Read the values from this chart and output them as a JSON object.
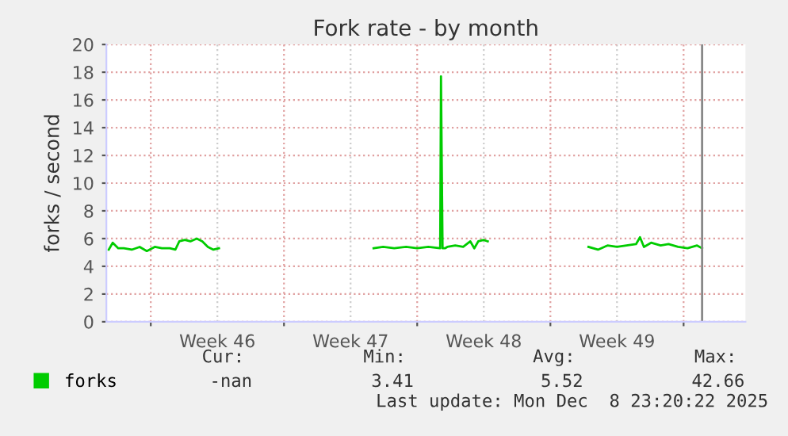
{
  "chart_data": {
    "type": "line",
    "title": "Fork rate - by month",
    "ylabel": "forks / second",
    "x": [
      "2025-11-07T19:00",
      "2025-11-08T00:00",
      "2025-11-08T07:00",
      "2025-11-08T14:00",
      "2025-11-09T00:00",
      "2025-11-09T10:00",
      "2025-11-09T19:00",
      "2025-11-10T05:00",
      "2025-11-10T14:00",
      "2025-11-11T00:00",
      "2025-11-11T07:00",
      "2025-11-11T12:00",
      "2025-11-11T19:00",
      "2025-11-12T02:00",
      "2025-11-12T10:00",
      "2025-11-12T17:00",
      "2025-11-13T00:00",
      "2025-11-13T07:00",
      "2025-11-13T14:00",
      "2025-11-14T00:00",
      "2025-11-21T17:00",
      "2025-11-22T05:00",
      "2025-11-22T19:00",
      "2025-11-23T10:00",
      "2025-11-24T00:00",
      "2025-11-24T14:00",
      "2025-11-25T05:00",
      "2025-11-25T06:00",
      "2025-11-25T08:00",
      "2025-11-25T11:00",
      "2025-11-25T14:00",
      "2025-11-26T00:00",
      "2025-11-26T10:00",
      "2025-11-26T19:00",
      "2025-11-27T00:00",
      "2025-11-27T05:00",
      "2025-11-27T12:00",
      "2025-11-27T17:00",
      "2025-11-30T00:00",
      "2025-12-03T00:00",
      "2025-12-03T12:00",
      "2025-12-04T00:00",
      "2025-12-04T12:00",
      "2025-12-05T00:00",
      "2025-12-05T12:00",
      "2025-12-05T17:00",
      "2025-12-05T22:00",
      "2025-12-06T07:00",
      "2025-12-06T19:00",
      "2025-12-07T05:00",
      "2025-12-07T17:00",
      "2025-12-08T05:00",
      "2025-12-08T17:00",
      "2025-12-08T23:20"
    ],
    "series": [
      {
        "name": "forks",
        "color": "#00cc00",
        "values": [
          5.2,
          5.7,
          5.3,
          5.3,
          5.2,
          5.4,
          5.1,
          5.4,
          5.3,
          5.3,
          5.2,
          5.8,
          5.9,
          5.8,
          6.0,
          5.8,
          5.4,
          5.2,
          5.3,
          null,
          5.3,
          5.4,
          5.3,
          5.4,
          5.3,
          5.4,
          5.3,
          17.7,
          5.3,
          5.3,
          5.4,
          5.5,
          5.4,
          5.8,
          5.3,
          5.8,
          5.9,
          5.8,
          null,
          5.4,
          5.2,
          5.5,
          5.4,
          5.5,
          5.6,
          6.1,
          5.4,
          5.7,
          5.5,
          5.6,
          5.4,
          5.3,
          5.5,
          5.3
        ]
      }
    ],
    "xlim": [
      "2025-11-07T16:00",
      "2025-12-11T06:00"
    ],
    "xticks": [
      {
        "value": "2025-11-10",
        "label": null
      },
      {
        "value": "2025-11-13T12:00",
        "label": "Week 46"
      },
      {
        "value": "2025-11-17",
        "label": null
      },
      {
        "value": "2025-11-20T12:00",
        "label": "Week 47"
      },
      {
        "value": "2025-11-24",
        "label": null
      },
      {
        "value": "2025-11-27T12:00",
        "label": "Week 48"
      },
      {
        "value": "2025-12-01",
        "label": null
      },
      {
        "value": "2025-12-04T12:00",
        "label": "Week 49"
      },
      {
        "value": "2025-12-08",
        "label": null
      }
    ],
    "ylim": [
      0,
      20
    ],
    "yticks": [
      0,
      2,
      4,
      6,
      8,
      10,
      12,
      14,
      16,
      18,
      20
    ],
    "ref_lines": [
      {
        "axis": "x",
        "value": "2025-12-08T23:20",
        "color": "#888888"
      }
    ],
    "grid": true,
    "legend": "bottom",
    "annotations": [
      "Cur:",
      "Min:",
      "Avg:",
      "Max:",
      "-nan",
      "3.41",
      "5.52",
      "42.66",
      "Last update: Mon Dec  8 23:20:22 2025"
    ]
  }
}
